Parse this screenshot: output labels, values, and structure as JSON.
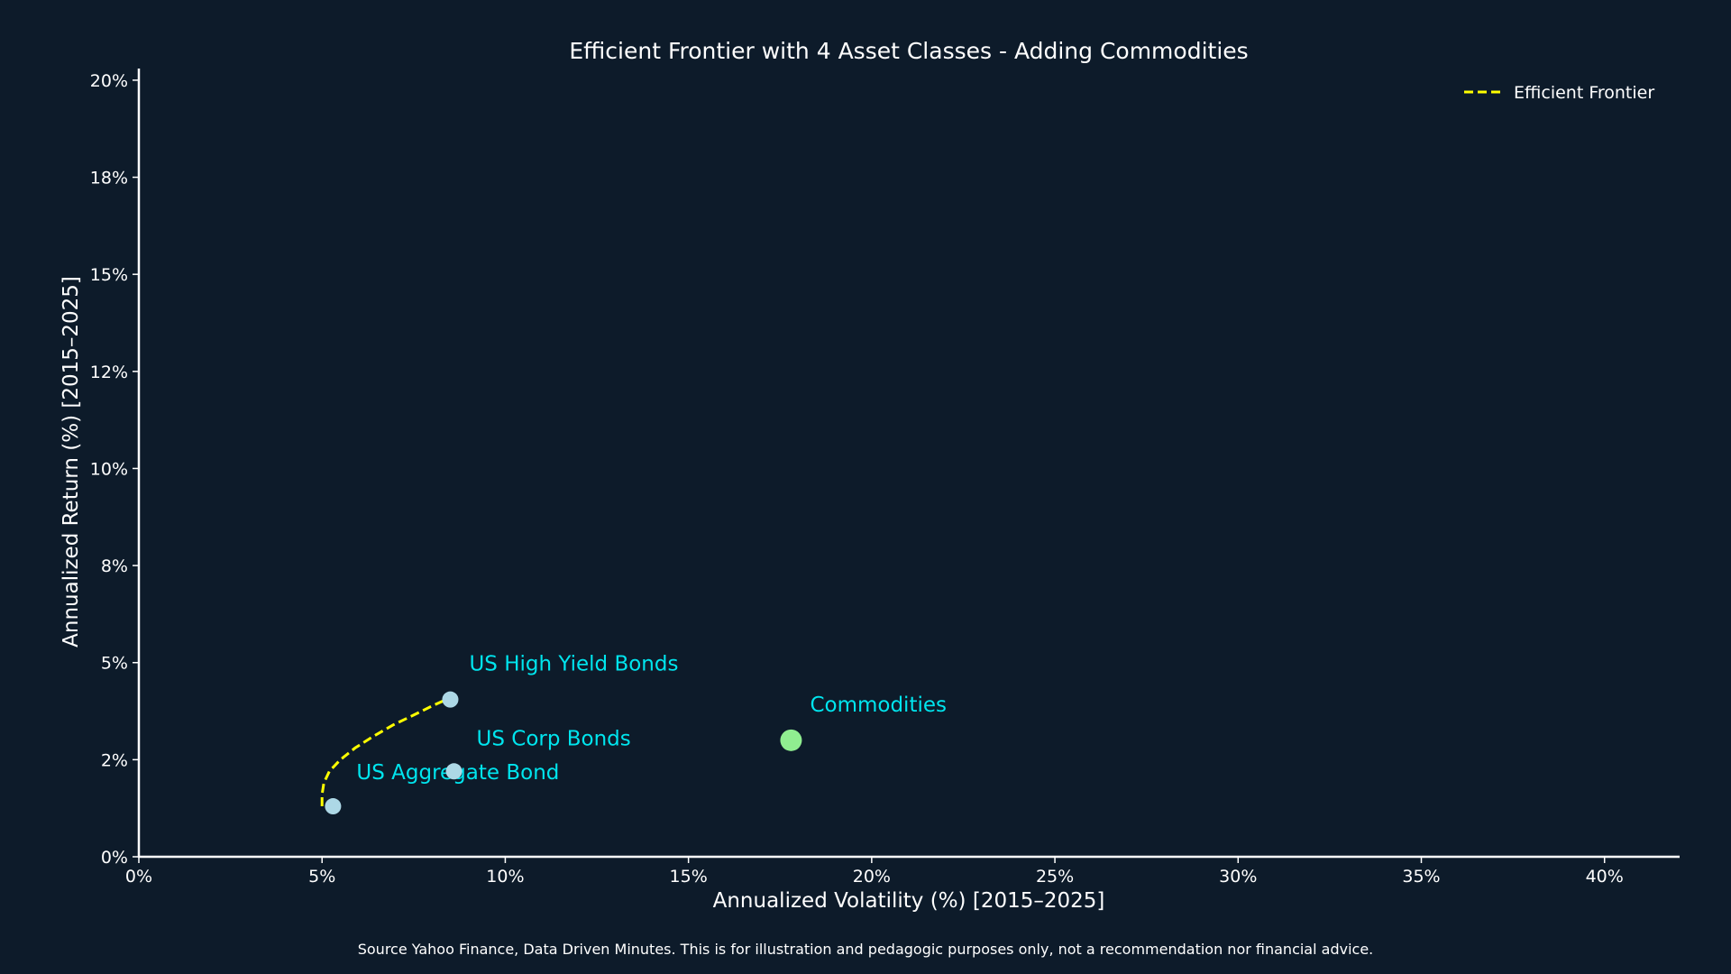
{
  "chart_data": {
    "type": "scatter",
    "title": "Efficient Frontier with 4 Asset Classes - Adding Commodities",
    "xlabel": "Annualized Volatility (%) [2015–2025]",
    "ylabel": "Annualized Return (%) [2015–2025]",
    "xlim": [
      0,
      42
    ],
    "ylim": [
      0,
      20.3
    ],
    "x_ticks": [
      {
        "value": 0,
        "label": "0%"
      },
      {
        "value": 5,
        "label": "5%"
      },
      {
        "value": 10,
        "label": "10%"
      },
      {
        "value": 15,
        "label": "15%"
      },
      {
        "value": 20,
        "label": "20%"
      },
      {
        "value": 25,
        "label": "25%"
      },
      {
        "value": 30,
        "label": "30%"
      },
      {
        "value": 35,
        "label": "35%"
      },
      {
        "value": 40,
        "label": "40%"
      }
    ],
    "y_ticks": [
      {
        "value": 0,
        "label": "0%"
      },
      {
        "value": 2.5,
        "label": "2%"
      },
      {
        "value": 5,
        "label": "5%"
      },
      {
        "value": 7.5,
        "label": "8%"
      },
      {
        "value": 10,
        "label": "10%"
      },
      {
        "value": 12.5,
        "label": "12%"
      },
      {
        "value": 15,
        "label": "15%"
      },
      {
        "value": 17.5,
        "label": "18%"
      },
      {
        "value": 20,
        "label": "20%"
      }
    ],
    "grid": false,
    "legend_position": "top-right",
    "frontier": {
      "name": "Efficient Frontier",
      "color": "#ffff00",
      "line_style": "dashed",
      "points": [
        [
          5.0,
          1.3
        ],
        [
          5.0,
          1.6
        ],
        [
          5.05,
          1.9
        ],
        [
          5.2,
          2.2
        ],
        [
          5.5,
          2.5
        ],
        [
          5.9,
          2.8
        ],
        [
          6.4,
          3.1
        ],
        [
          6.95,
          3.4
        ],
        [
          7.5,
          3.65
        ],
        [
          8.0,
          3.88
        ],
        [
          8.5,
          4.1
        ]
      ]
    },
    "assets": [
      {
        "name": "US Aggregate Bond",
        "x": 5.3,
        "y": 1.3,
        "color": "#add8e6",
        "label_color": "#00e5ee"
      },
      {
        "name": "US Corp Bonds",
        "x": 8.6,
        "y": 2.2,
        "color": "#add8e6",
        "label_color": "#00e5ee"
      },
      {
        "name": "US High Yield Bonds",
        "x": 8.5,
        "y": 4.05,
        "color": "#add8e6",
        "label_color": "#00e5ee"
      },
      {
        "name": "Commodities",
        "x": 17.8,
        "y": 3.0,
        "color": "#90ee90",
        "label_color": "#00e5ee"
      }
    ]
  },
  "footer": {
    "source": "Source Yahoo Finance, Data Driven Minutes. This is for illustration and pedagogic purposes only, not a recommendation nor financial advice."
  }
}
